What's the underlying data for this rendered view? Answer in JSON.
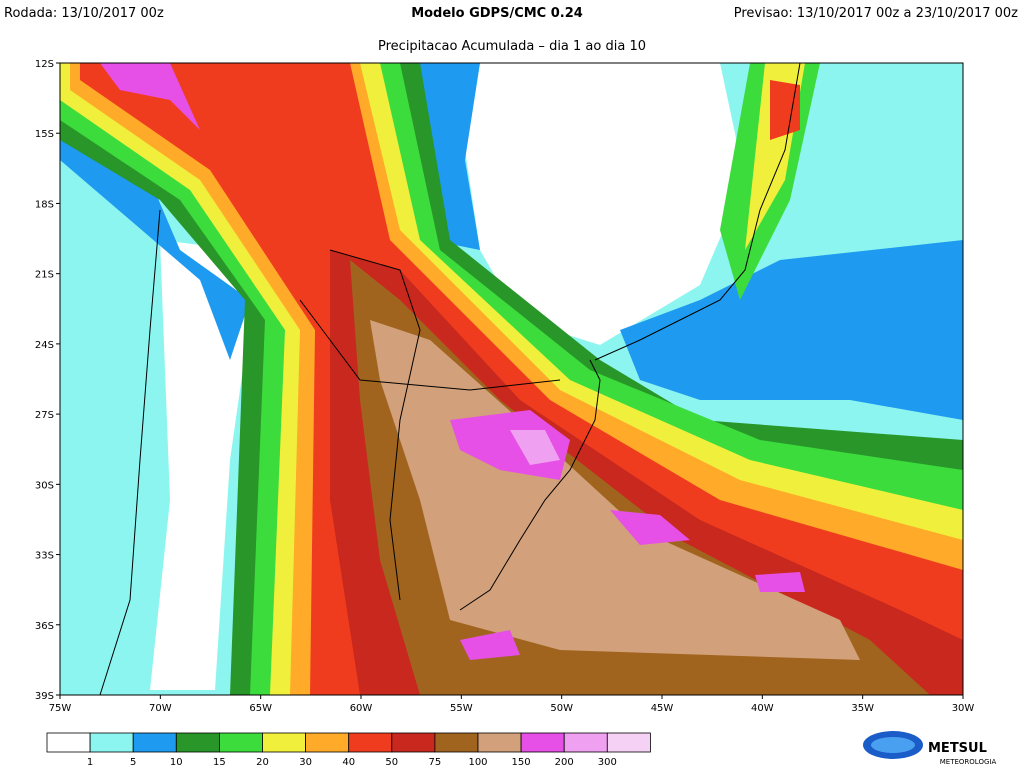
{
  "header": {
    "run": "Rodada: 13/10/2017 00z",
    "model": "Modelo GDPS/CMC 0.24",
    "forecast": "Previsao: 13/10/2017 00z a 23/10/2017 00z",
    "subtitle": "Precipitacao Acumulada – dia 1 ao dia 10"
  },
  "map": {
    "lat_labels": [
      "12S",
      "15S",
      "18S",
      "21S",
      "24S",
      "27S",
      "30S",
      "33S",
      "36S",
      "39S"
    ],
    "lon_labels": [
      "75W",
      "70W",
      "65W",
      "60W",
      "55W",
      "50W",
      "45W",
      "40W",
      "35W",
      "30W"
    ]
  },
  "colorbar": {
    "colors": [
      "#ffffff",
      "#8cf5f0",
      "#1e9bf0",
      "#289628",
      "#3cdc3c",
      "#f0f03c",
      "#ffaa28",
      "#f03c1e",
      "#c8281e",
      "#a0641e",
      "#d2a07a",
      "#e650e6",
      "#f0a0f0",
      "#f5d2f5"
    ],
    "levels": [
      1,
      5,
      10,
      15,
      20,
      30,
      40,
      50,
      75,
      100,
      150,
      200,
      300
    ]
  },
  "logo": {
    "name": "METSUL",
    "tagline": "METEOROLOGIA"
  }
}
